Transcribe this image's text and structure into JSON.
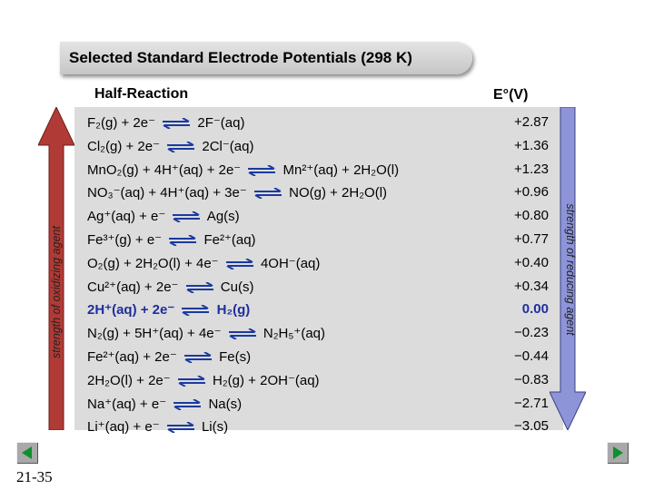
{
  "title": "Selected Standard Electrode Potentials (298 K)",
  "headers": {
    "half_reaction": "Half-Reaction",
    "potential": "E°(V)"
  },
  "left_axis_label": "strength of oxidizing agent",
  "right_axis_label": "strength of reducing agent",
  "slide_number": "21-35",
  "colors": {
    "arrow_left": "#b03a35",
    "arrow_right": "#8d95d8",
    "highlight": "#1f2e9c",
    "nav_arrow": "#0f8f2f"
  },
  "icons": {
    "equilibrium": "equilibrium-arrows-icon",
    "prev": "previous-slide-icon",
    "next": "next-slide-icon"
  },
  "rows": [
    {
      "reaction": "F₂(g) + 2e⁻ ⇌ 2F⁻(aq)",
      "potential": "+2.87"
    },
    {
      "reaction": "Cl₂(g) + 2e⁻ ⇌ 2Cl⁻(aq)",
      "potential": "+1.36"
    },
    {
      "reaction": "MnO₂(g) + 4H⁺(aq) + 2e⁻ ⇌ Mn²⁺(aq) + 2H₂O(l)",
      "potential": "+1.23"
    },
    {
      "reaction": "NO₃⁻(aq) + 4H⁺(aq) + 3e⁻ ⇌ NO(g) + 2H₂O(l)",
      "potential": "+0.96"
    },
    {
      "reaction": "Ag⁺(aq) + e⁻ ⇌ Ag(s)",
      "potential": "+0.80"
    },
    {
      "reaction": "Fe³⁺(g) + e⁻ ⇌ Fe²⁺(aq)",
      "potential": "+0.77"
    },
    {
      "reaction": "O₂(g) + 2H₂O(l) + 4e⁻ ⇌ 4OH⁻(aq)",
      "potential": "+0.40"
    },
    {
      "reaction": "Cu²⁺(aq) + 2e⁻ ⇌ Cu(s)",
      "potential": "+0.34"
    },
    {
      "reaction": "2H⁺(aq) + 2e⁻ ⇌ H₂(g)",
      "potential": "0.00",
      "highlight": true
    },
    {
      "reaction": "N₂(g) + 5H⁺(aq) + 4e⁻ ⇌ N₂H₅⁺(aq)",
      "potential": "−0.23"
    },
    {
      "reaction": "Fe²⁺(aq) + 2e⁻ ⇌ Fe(s)",
      "potential": "−0.44"
    },
    {
      "reaction": "2H₂O(l) + 2e⁻ ⇌ H₂(g) + 2OH⁻(aq)",
      "potential": "−0.83"
    },
    {
      "reaction": "Na⁺(aq) + e⁻ ⇌ Na(s)",
      "potential": "−2.71"
    },
    {
      "reaction": "Li⁺(aq) + e⁻ ⇌ Li(s)",
      "potential": "−3.05"
    }
  ]
}
